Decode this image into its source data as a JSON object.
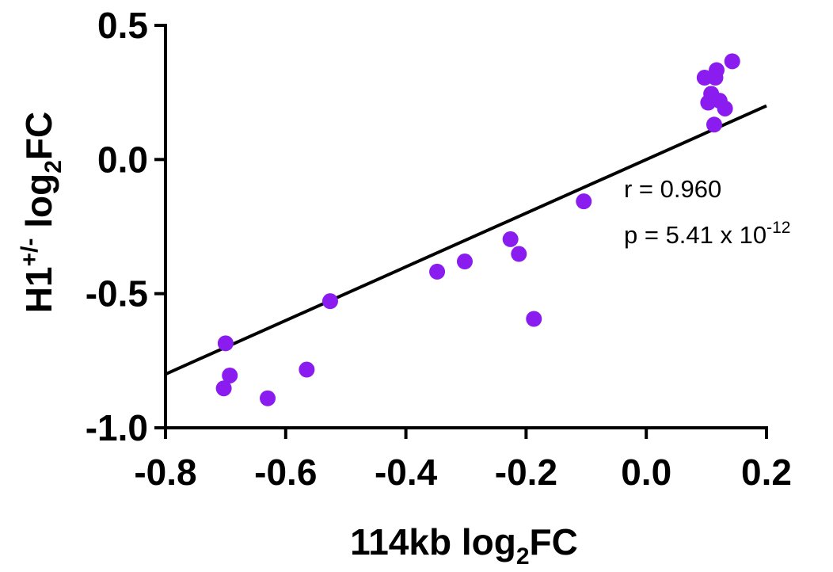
{
  "chart_data": {
    "type": "scatter",
    "title": "",
    "xlabel": {
      "main": "114kb log",
      "subscript": "2",
      "suffix": "FC"
    },
    "ylabel": {
      "main": "H1",
      "superscript": "+/-",
      "middle": " log",
      "subscript": "2",
      "suffix": "FC"
    },
    "xlim": [
      -0.8,
      0.2
    ],
    "ylim": [
      -1.0,
      0.5
    ],
    "xticks": [
      -0.8,
      -0.6,
      -0.4,
      -0.2,
      0.0,
      0.2
    ],
    "xtick_labels": [
      "-0.8",
      "-0.6",
      "-0.4",
      "-0.2",
      "0.0",
      "0.2"
    ],
    "yticks": [
      -1.0,
      -0.5,
      0.0,
      0.5
    ],
    "ytick_labels": [
      "-1.0",
      "-0.5",
      "0.0",
      "0.5"
    ],
    "grid": false,
    "point_color": "#8a1cf0",
    "line_color": "#000000",
    "points": [
      {
        "x": -0.703,
        "y": -0.853
      },
      {
        "x": -0.7,
        "y": -0.685
      },
      {
        "x": -0.693,
        "y": -0.805
      },
      {
        "x": -0.63,
        "y": -0.89
      },
      {
        "x": -0.565,
        "y": -0.783
      },
      {
        "x": -0.526,
        "y": -0.528
      },
      {
        "x": -0.348,
        "y": -0.418
      },
      {
        "x": -0.302,
        "y": -0.38
      },
      {
        "x": -0.226,
        "y": -0.297
      },
      {
        "x": -0.212,
        "y": -0.352
      },
      {
        "x": -0.187,
        "y": -0.594
      },
      {
        "x": -0.104,
        "y": -0.156
      },
      {
        "x": 0.097,
        "y": 0.305
      },
      {
        "x": 0.103,
        "y": 0.212
      },
      {
        "x": 0.108,
        "y": 0.245
      },
      {
        "x": 0.113,
        "y": 0.13
      },
      {
        "x": 0.115,
        "y": 0.305
      },
      {
        "x": 0.117,
        "y": 0.333
      },
      {
        "x": 0.122,
        "y": 0.219
      },
      {
        "x": 0.131,
        "y": 0.19
      },
      {
        "x": 0.143,
        "y": 0.366
      }
    ],
    "regression_line": {
      "x": [
        -0.8,
        0.2
      ],
      "y": [
        -0.8,
        0.2
      ]
    },
    "annotations": {
      "r_text": "r = 0.960",
      "p_text": "p = 5.41 x 10",
      "p_exponent": "-12"
    }
  }
}
